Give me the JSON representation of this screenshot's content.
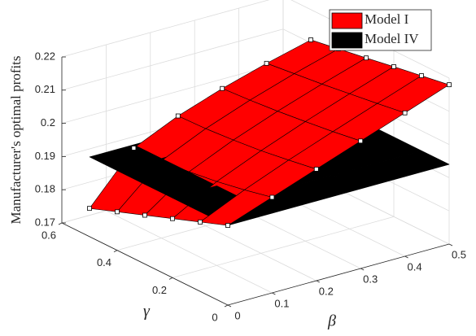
{
  "chart_data": {
    "type": "surface",
    "xlabel": "β",
    "ylabel": "γ",
    "zlabel": "Manufacturer's optimal profits",
    "x": [
      0,
      0.1,
      0.2,
      0.3,
      0.4,
      0.5
    ],
    "y": [
      0,
      0.1,
      0.2,
      0.3,
      0.4,
      0.5
    ],
    "xlim": [
      0,
      0.5
    ],
    "ylim": [
      0,
      0.6
    ],
    "zlim": [
      0.17,
      0.22
    ],
    "xticks": [
      0,
      0.1,
      0.2,
      0.3,
      0.4,
      0.5
    ],
    "yticks": [
      0,
      0.2,
      0.4,
      0.6
    ],
    "zticks": [
      0.17,
      0.18,
      0.19,
      0.2,
      0.21,
      0.22
    ],
    "grid": true,
    "legend": "upper right",
    "series": [
      {
        "name": "Model I",
        "color": "#ff0000",
        "edgecolor": "#000000",
        "markers": true,
        "z": [
          [
            0.194,
            0.1988,
            0.2036,
            0.2084,
            0.2132,
            0.218
          ],
          [
            0.1909,
            0.1969,
            0.2022,
            0.2071,
            0.2119,
            0.2166
          ],
          [
            0.1878,
            0.1953,
            0.2009,
            0.206,
            0.2107,
            0.2152
          ],
          [
            0.1847,
            0.1941,
            0.2,
            0.205,
            0.2095,
            0.2137
          ],
          [
            0.1816,
            0.1933,
            0.1993,
            0.2042,
            0.2085,
            0.2123
          ],
          [
            0.1785,
            0.193,
            0.199,
            0.2036,
            0.2075,
            0.2109
          ]
        ]
      },
      {
        "name": "Model IV",
        "color": "#000000",
        "edgecolor": "#000000",
        "markers": false,
        "z": [
          [
            0.194,
            0.194,
            0.194,
            0.194,
            0.194,
            0.194
          ],
          [
            0.194,
            0.194,
            0.194,
            0.194,
            0.194,
            0.194
          ],
          [
            0.194,
            0.194,
            0.194,
            0.194,
            0.194,
            0.194
          ],
          [
            0.194,
            0.194,
            0.194,
            0.194,
            0.194,
            0.194
          ],
          [
            0.194,
            0.194,
            0.194,
            0.194,
            0.194,
            0.194
          ],
          [
            0.194,
            0.194,
            0.194,
            0.194,
            0.194,
            0.194
          ]
        ]
      }
    ]
  }
}
